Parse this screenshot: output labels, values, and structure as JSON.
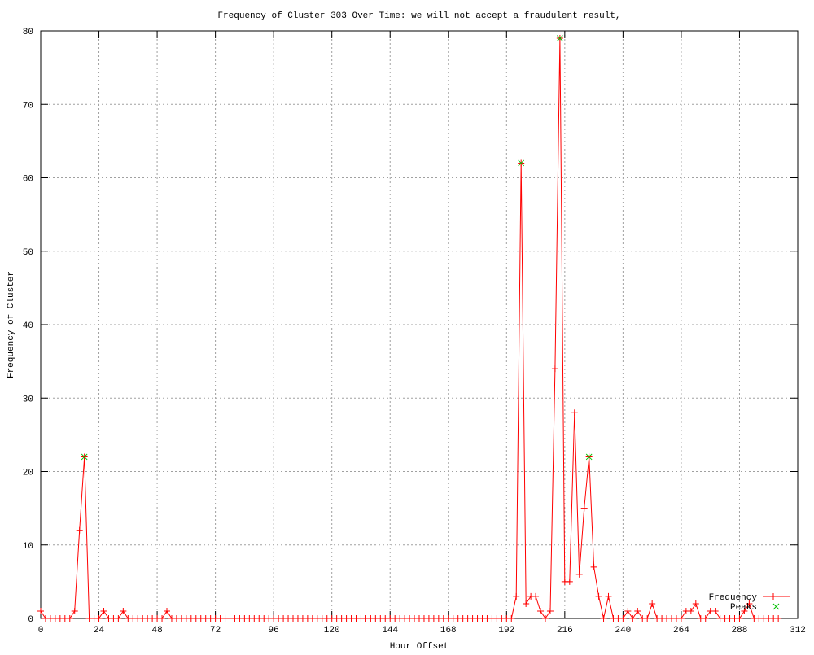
{
  "chart_data": {
    "type": "line",
    "title": "Frequency of Cluster 303 Over Time: we will not accept a fraudulent result,",
    "xlabel": "Hour Offset",
    "ylabel": "Frequency of Cluster",
    "xlim": [
      0,
      312
    ],
    "ylim": [
      0,
      80
    ],
    "xticks": [
      0,
      24,
      48,
      72,
      96,
      120,
      144,
      168,
      192,
      216,
      240,
      264,
      288,
      312
    ],
    "yticks": [
      0,
      10,
      20,
      30,
      40,
      50,
      60,
      70,
      80
    ],
    "grid": true,
    "legend_position": "bottom-right",
    "series": [
      {
        "name": "Frequency",
        "color": "#ff0000",
        "marker": "plus",
        "x": [
          0,
          2,
          4,
          6,
          8,
          10,
          12,
          14,
          16,
          18,
          20,
          22,
          24,
          26,
          28,
          30,
          32,
          34,
          36,
          38,
          40,
          42,
          44,
          46,
          48,
          50,
          52,
          54,
          56,
          58,
          60,
          62,
          64,
          66,
          68,
          70,
          72,
          74,
          76,
          78,
          80,
          82,
          84,
          86,
          88,
          90,
          92,
          94,
          96,
          98,
          100,
          102,
          104,
          106,
          108,
          110,
          112,
          114,
          116,
          118,
          120,
          122,
          124,
          126,
          128,
          130,
          132,
          134,
          136,
          138,
          140,
          142,
          144,
          146,
          148,
          150,
          152,
          154,
          156,
          158,
          160,
          162,
          164,
          166,
          168,
          170,
          172,
          174,
          176,
          178,
          180,
          182,
          184,
          186,
          188,
          190,
          192,
          194,
          196,
          198,
          200,
          202,
          204,
          206,
          208,
          210,
          212,
          214,
          216,
          218,
          220,
          222,
          224,
          226,
          228,
          230,
          232,
          234,
          236,
          238,
          240,
          242,
          244,
          246,
          248,
          250,
          252,
          254,
          256,
          258,
          260,
          262,
          264,
          266,
          268,
          270,
          272,
          274,
          276,
          278,
          280,
          282,
          284,
          286,
          288,
          290,
          292,
          294,
          296,
          298,
          300,
          302,
          304
        ],
        "y": [
          1,
          0,
          0,
          0,
          0,
          0,
          0,
          1,
          12,
          22,
          0,
          0,
          0,
          1,
          0,
          0,
          0,
          1,
          0,
          0,
          0,
          0,
          0,
          0,
          0,
          0,
          1,
          0,
          0,
          0,
          0,
          0,
          0,
          0,
          0,
          0,
          0,
          0,
          0,
          0,
          0,
          0,
          0,
          0,
          0,
          0,
          0,
          0,
          0,
          0,
          0,
          0,
          0,
          0,
          0,
          0,
          0,
          0,
          0,
          0,
          0,
          0,
          0,
          0,
          0,
          0,
          0,
          0,
          0,
          0,
          0,
          0,
          0,
          0,
          0,
          0,
          0,
          0,
          0,
          0,
          0,
          0,
          0,
          0,
          0,
          0,
          0,
          0,
          0,
          0,
          0,
          0,
          0,
          0,
          0,
          0,
          0,
          0,
          3,
          62,
          2,
          3,
          3,
          1,
          0,
          1,
          34,
          79,
          5,
          5,
          28,
          6,
          15,
          22,
          7,
          3,
          0,
          3,
          0,
          0,
          0,
          1,
          0,
          1,
          0,
          0,
          2,
          0,
          0,
          0,
          0,
          0,
          0,
          1,
          1,
          2,
          0,
          0,
          1,
          1,
          0,
          0,
          0,
          0,
          0,
          1,
          2,
          0,
          0,
          0,
          0,
          0,
          0
        ]
      },
      {
        "name": "Peaks",
        "color": "#00c000",
        "marker": "cross",
        "x": [
          18,
          198,
          214,
          226
        ],
        "y": [
          22,
          62,
          79,
          22
        ]
      }
    ]
  }
}
